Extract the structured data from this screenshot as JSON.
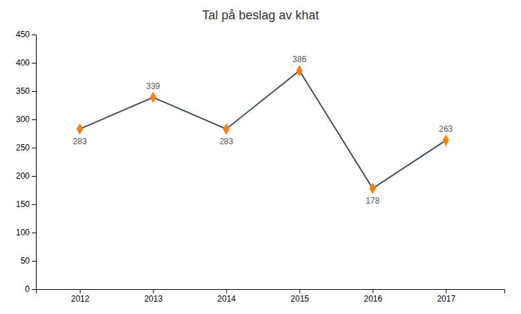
{
  "chart_data": {
    "type": "line",
    "title": "Tal på beslag av khat",
    "x": [
      2012,
      2013,
      2014,
      2015,
      2016,
      2017
    ],
    "values": [
      283,
      339,
      283,
      386,
      178,
      263
    ],
    "color": "#3d4f5c",
    "marker": "diamond",
    "xlim": [
      2011.4,
      2017.8
    ],
    "xticks": [
      2012,
      2013,
      2014,
      2015,
      2016,
      2017
    ],
    "ylim": [
      0,
      450
    ],
    "yticks": [
      0,
      50,
      100,
      150,
      200,
      250,
      300,
      350,
      400,
      450
    ],
    "grid": false,
    "data_labels": true
  }
}
